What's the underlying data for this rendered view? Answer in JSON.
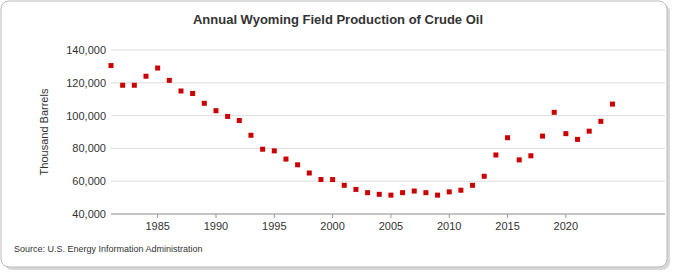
{
  "chart_data": {
    "type": "scatter",
    "title": "Annual Wyoming Field Production of Crude Oil",
    "y_label": "Thousand Barrels",
    "source": "Source: U.S. Energy Information Administration",
    "x": [
      1981,
      1982,
      1983,
      1984,
      1985,
      1986,
      1987,
      1988,
      1989,
      1990,
      1991,
      1992,
      1993,
      1994,
      1995,
      1996,
      1997,
      1998,
      1999,
      2000,
      2001,
      2002,
      2003,
      2004,
      2005,
      2006,
      2007,
      2008,
      2009,
      2010,
      2011,
      2012,
      2013,
      2014,
      2015,
      2016,
      2017,
      2018,
      2019,
      2020,
      2021,
      2022,
      2023,
      2024
    ],
    "values": [
      130500,
      118500,
      118500,
      124000,
      129000,
      121500,
      115000,
      113500,
      107500,
      103000,
      99500,
      97000,
      88000,
      79500,
      78500,
      73500,
      70000,
      65000,
      61000,
      61000,
      57500,
      55000,
      53000,
      52000,
      51500,
      53000,
      54000,
      53000,
      51500,
      53500,
      54500,
      57500,
      63000,
      76000,
      86500,
      73000,
      75500,
      87500,
      102000,
      89000,
      85500,
      90500,
      96500,
      107000
    ],
    "color": "#cc0000",
    "marker": "square",
    "xlim": [
      1981,
      2028.5
    ],
    "xticks": [
      1985,
      1990,
      1995,
      2000,
      2005,
      2010,
      2015,
      2020
    ],
    "ylim": [
      40000,
      140000
    ],
    "yticks": [
      {
        "value": 40000,
        "label": "40,000"
      },
      {
        "value": 60000,
        "label": "60,000"
      },
      {
        "value": 80000,
        "label": "80,000"
      },
      {
        "value": 100000,
        "label": "100,000"
      },
      {
        "value": 120000,
        "label": "120,000"
      },
      {
        "value": 140000,
        "label": "140,000"
      }
    ],
    "grid": true
  }
}
